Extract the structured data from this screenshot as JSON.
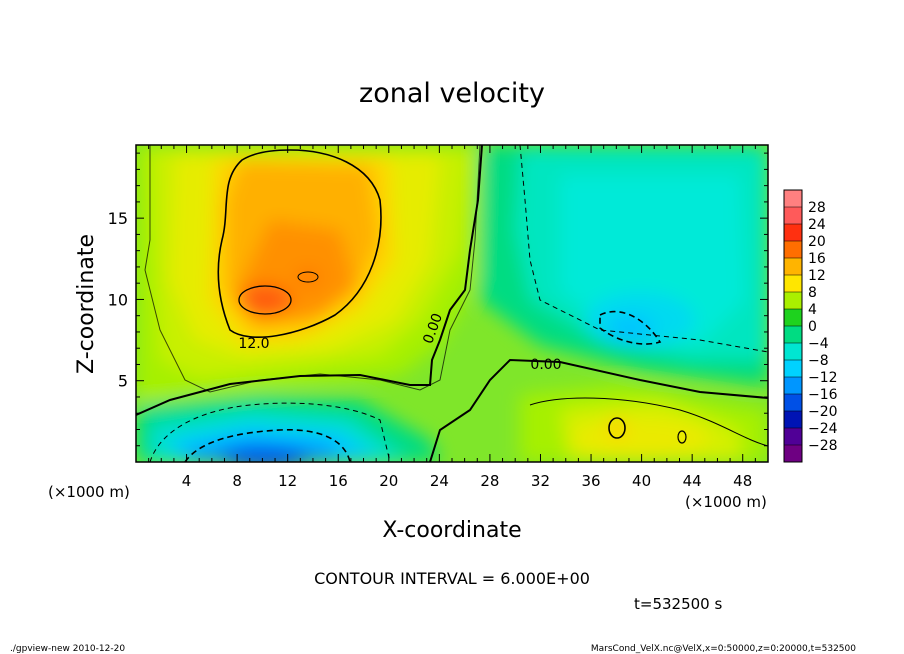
{
  "chart_data": {
    "type": "heatmap",
    "title": "zonal velocity",
    "xlabel": "X-coordinate",
    "ylabel": "Z-coordinate",
    "x_unit": "(×1000 m)",
    "y_ticks": [
      "5",
      "10",
      "15"
    ],
    "x_ticks": [
      "4",
      "8",
      "12",
      "16",
      "20",
      "24",
      "28",
      "32",
      "36",
      "40",
      "44",
      "48"
    ],
    "xlim": [
      0,
      50
    ],
    "ylim": [
      0,
      19.5
    ],
    "contour_interval_text": "CONTOUR INTERVAL = 6.000E+00",
    "time_text": "t=532500 s",
    "contour_labels": [
      {
        "text": "12.0",
        "x": 9.9,
        "z": 7.6
      },
      {
        "text": "0.00",
        "x": 32.5,
        "z": 6.1
      },
      {
        "text": "0.00",
        "x": 23.8,
        "z": 9.0
      }
    ],
    "colorbar_levels": [
      "28",
      "24",
      "20",
      "16",
      "12",
      "8",
      "4",
      "0",
      "−4",
      "−8",
      "−12",
      "−16",
      "−20",
      "−24",
      "−28"
    ],
    "colors": [
      "#ff8080",
      "#ff5a5a",
      "#ff3010",
      "#ff6e00",
      "#ffb400",
      "#ffe600",
      "#aaf000",
      "#1ed21e",
      "#00dc82",
      "#00e6d2",
      "#00d2ff",
      "#0096ff",
      "#0050e6",
      "#0014b4",
      "#500096",
      "#6e0082"
    ]
  },
  "footer": {
    "left": "./gpview-new  2010-12-20",
    "right": "MarsCond_VelX.nc@VelX,x=0:50000,z=0:20000,t=532500"
  }
}
